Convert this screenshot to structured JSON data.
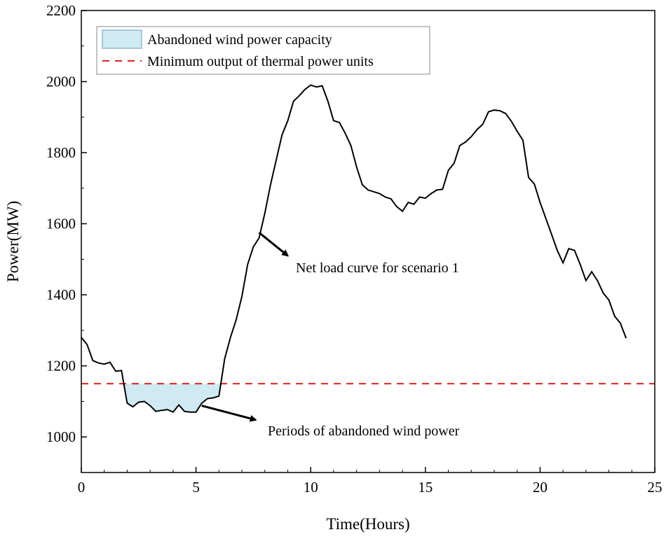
{
  "chart_data": {
    "type": "line",
    "title": "",
    "xlabel": "Time(Hours)",
    "ylabel": "Power(MW)",
    "xlim": [
      0,
      25
    ],
    "ylim": [
      900,
      2200
    ],
    "xticks": [
      0,
      5,
      10,
      15,
      20,
      25
    ],
    "yticks": [
      1000,
      1200,
      1400,
      1600,
      1800,
      2000,
      2200
    ],
    "grid": false,
    "legend_position": "top-left",
    "threshold": {
      "name": "Minimum output of thermal power units",
      "value": 1150,
      "color": "#e02020"
    },
    "fill_region": {
      "name": "Abandoned wind power capacity",
      "color": "#cfeaf2",
      "edge_color": "#6a9fb5"
    },
    "series": [
      {
        "name": "Net load curve for scenario 1",
        "color": "#000000",
        "x": [
          0,
          0.25,
          0.5,
          0.75,
          1,
          1.25,
          1.5,
          1.75,
          2,
          2.25,
          2.5,
          2.75,
          3,
          3.25,
          3.5,
          3.75,
          4,
          4.25,
          4.5,
          4.75,
          5,
          5.25,
          5.5,
          5.75,
          6,
          6.25,
          6.5,
          6.75,
          7,
          7.25,
          7.5,
          7.75,
          8,
          8.25,
          8.5,
          8.75,
          9,
          9.25,
          9.5,
          9.75,
          10,
          10.25,
          10.5,
          10.75,
          11,
          11.25,
          11.5,
          11.75,
          12,
          12.25,
          12.5,
          12.75,
          13,
          13.25,
          13.5,
          13.75,
          14,
          14.25,
          14.5,
          14.75,
          15,
          15.25,
          15.5,
          15.75,
          16,
          16.25,
          16.5,
          16.75,
          17,
          17.25,
          17.5,
          17.75,
          18,
          18.25,
          18.5,
          18.75,
          19,
          19.25,
          19.5,
          19.75,
          20,
          20.25,
          20.5,
          20.75,
          21,
          21.25,
          21.5,
          21.75,
          22,
          22.25,
          22.5,
          22.75,
          23,
          23.25,
          23.5,
          23.75
        ],
        "y": [
          1280,
          1260,
          1215,
          1208,
          1205,
          1210,
          1185,
          1187,
          1095,
          1085,
          1098,
          1100,
          1088,
          1072,
          1075,
          1077,
          1070,
          1090,
          1072,
          1070,
          1070,
          1095,
          1108,
          1110,
          1115,
          1220,
          1280,
          1330,
          1395,
          1485,
          1535,
          1560,
          1630,
          1710,
          1780,
          1850,
          1890,
          1945,
          1960,
          1978,
          1990,
          1985,
          1988,
          1945,
          1890,
          1885,
          1855,
          1820,
          1760,
          1710,
          1695,
          1690,
          1685,
          1675,
          1670,
          1648,
          1635,
          1660,
          1655,
          1675,
          1672,
          1685,
          1695,
          1697,
          1750,
          1770,
          1820,
          1830,
          1845,
          1865,
          1880,
          1915,
          1920,
          1918,
          1910,
          1888,
          1860,
          1835,
          1730,
          1712,
          1660,
          1615,
          1570,
          1525,
          1490,
          1530,
          1525,
          1485,
          1440,
          1465,
          1440,
          1405,
          1385,
          1340,
          1320,
          1278
        ]
      }
    ],
    "annotations": [
      {
        "text": "Net load curve for scenario 1",
        "point": [
          7.75,
          1575
        ],
        "arrow_tip": [
          9.0,
          1510
        ]
      },
      {
        "text": "Periods of abandoned wind power",
        "point": [
          5.25,
          1088
        ],
        "arrow_tip": [
          7.6,
          1048
        ]
      }
    ]
  }
}
